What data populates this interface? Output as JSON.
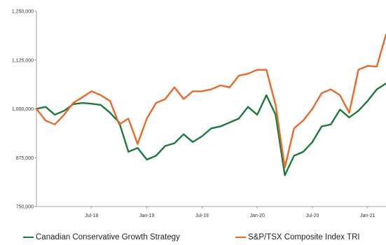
{
  "chart_data": {
    "type": "line",
    "title": "",
    "xlabel": "",
    "ylabel": "",
    "x_range": [
      "2018-01",
      "2021-03"
    ],
    "ylim": [
      750000,
      1250000
    ],
    "y_ticks": [
      750000,
      875000,
      1000000,
      1125000,
      1250000
    ],
    "y_tick_labels": [
      "750,000",
      "875,000",
      "1,000,000",
      "1,125,000",
      "1,250,000"
    ],
    "x_ticks": [
      "2018-07",
      "2019-01",
      "2019-07",
      "2020-01",
      "2020-07",
      "2021-01"
    ],
    "x_tick_labels": [
      "Jul-18",
      "Jan-19",
      "Jul-19",
      "Jan-20",
      "Jul-20",
      "Jan-21"
    ],
    "grid": false,
    "legend_position": "bottom",
    "series": [
      {
        "name": "Canadian Conservative Growth Strategy",
        "color": "#1b7a3a",
        "points": [
          [
            "2018-01",
            1000000
          ],
          [
            "2018-02",
            1005000
          ],
          [
            "2018-03",
            985000
          ],
          [
            "2018-04",
            995000
          ],
          [
            "2018-05",
            1012000
          ],
          [
            "2018-06",
            1015000
          ],
          [
            "2018-07",
            1013000
          ],
          [
            "2018-08",
            1010000
          ],
          [
            "2018-09",
            990000
          ],
          [
            "2018-10",
            965000
          ],
          [
            "2018-11",
            890000
          ],
          [
            "2018-12",
            900000
          ],
          [
            "2019-01",
            870000
          ],
          [
            "2019-02",
            880000
          ],
          [
            "2019-03",
            905000
          ],
          [
            "2019-04",
            912000
          ],
          [
            "2019-05",
            935000
          ],
          [
            "2019-06",
            915000
          ],
          [
            "2019-07",
            930000
          ],
          [
            "2019-08",
            950000
          ],
          [
            "2019-09",
            955000
          ],
          [
            "2019-10",
            965000
          ],
          [
            "2019-11",
            975000
          ],
          [
            "2019-12",
            1005000
          ],
          [
            "2020-01",
            985000
          ],
          [
            "2020-02",
            1035000
          ],
          [
            "2020-03",
            985000
          ],
          [
            "2020-04",
            830000
          ],
          [
            "2020-05",
            880000
          ],
          [
            "2020-06",
            890000
          ],
          [
            "2020-07",
            915000
          ],
          [
            "2020-08",
            955000
          ],
          [
            "2020-09",
            960000
          ],
          [
            "2020-10",
            998000
          ],
          [
            "2020-11",
            978000
          ],
          [
            "2020-12",
            995000
          ],
          [
            "2021-01",
            1020000
          ],
          [
            "2021-02",
            1050000
          ],
          [
            "2021-03",
            1065000
          ]
        ]
      },
      {
        "name": "S&P/TSX Composite Index TRI",
        "color": "#e8692a",
        "points": [
          [
            "2018-01",
            1000000
          ],
          [
            "2018-02",
            970000
          ],
          [
            "2018-03",
            960000
          ],
          [
            "2018-04",
            985000
          ],
          [
            "2018-05",
            1015000
          ],
          [
            "2018-06",
            1030000
          ],
          [
            "2018-07",
            1045000
          ],
          [
            "2018-08",
            1035000
          ],
          [
            "2018-09",
            1020000
          ],
          [
            "2018-10",
            960000
          ],
          [
            "2018-11",
            975000
          ],
          [
            "2018-12",
            910000
          ],
          [
            "2019-01",
            975000
          ],
          [
            "2019-02",
            1015000
          ],
          [
            "2019-03",
            1025000
          ],
          [
            "2019-04",
            1055000
          ],
          [
            "2019-05",
            1025000
          ],
          [
            "2019-06",
            1045000
          ],
          [
            "2019-07",
            1045000
          ],
          [
            "2019-08",
            1050000
          ],
          [
            "2019-09",
            1060000
          ],
          [
            "2019-10",
            1055000
          ],
          [
            "2019-11",
            1085000
          ],
          [
            "2019-12",
            1090000
          ],
          [
            "2020-01",
            1100000
          ],
          [
            "2020-02",
            1100000
          ],
          [
            "2020-03",
            1010000
          ],
          [
            "2020-04",
            850000
          ],
          [
            "2020-05",
            950000
          ],
          [
            "2020-06",
            970000
          ],
          [
            "2020-07",
            1000000
          ],
          [
            "2020-08",
            1040000
          ],
          [
            "2020-09",
            1050000
          ],
          [
            "2020-10",
            1035000
          ],
          [
            "2020-11",
            990000
          ],
          [
            "2020-12",
            1100000
          ],
          [
            "2021-01",
            1110000
          ],
          [
            "2021-02",
            1108000
          ],
          [
            "2021-03",
            1190000
          ]
        ]
      }
    ]
  }
}
